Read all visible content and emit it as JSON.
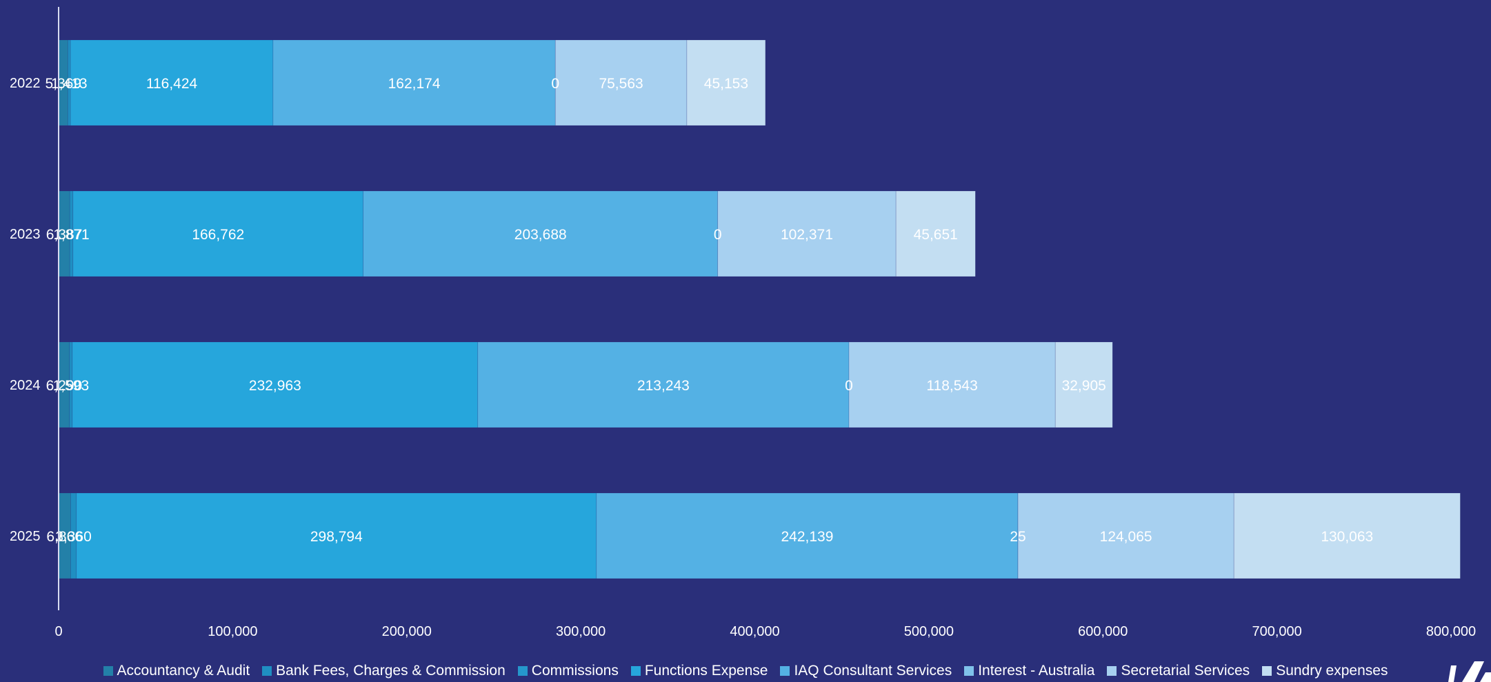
{
  "chart_data": {
    "type": "bar",
    "orientation": "horizontal",
    "stacked": true,
    "categories": [
      "2022",
      "2023",
      "2024",
      "2025"
    ],
    "xlim": [
      0,
      800000
    ],
    "x_ticks": [
      "0",
      "100,000",
      "200,000",
      "300,000",
      "400,000",
      "500,000",
      "600,000",
      "700,000",
      "800,000"
    ],
    "x_tick_values": [
      0,
      100000,
      200000,
      300000,
      400000,
      500000,
      600000,
      700000,
      800000
    ],
    "grid": false,
    "legend_position": "bottom",
    "series": [
      {
        "name": "Accountancy & Audit",
        "color": "#2380a8",
        "values": [
          5369,
          6387,
          6290,
          6866
        ],
        "labels": [
          "5,369",
          "6,387",
          "6,290",
          "6,866"
        ]
      },
      {
        "name": "Bank Fees, Charges & Commission",
        "color": "#1f8fc2",
        "values": [
          1413,
          1871,
          1593,
          3360
        ],
        "labels": [
          "1,413",
          "1,871",
          "1,593",
          "3,360"
        ]
      },
      {
        "name": "Commissions",
        "color": "#2597cc",
        "values": [
          0,
          0,
          0,
          0
        ],
        "labels": [
          "",
          "",
          "",
          ""
        ]
      },
      {
        "name": "Functions Expense",
        "color": "#26a6dc",
        "values": [
          116424,
          166762,
          232963,
          298794
        ],
        "labels": [
          "116,424",
          "166,762",
          "232,963",
          "298,794"
        ]
      },
      {
        "name": "IAQ Consultant Services",
        "color": "#54b1e4",
        "values": [
          162174,
          203688,
          213243,
          242139
        ],
        "labels": [
          "162,174",
          "203,688",
          "213,243",
          "242,139"
        ]
      },
      {
        "name": "Interest - Australia",
        "color": "#7fc2ea",
        "values": [
          0,
          0,
          0,
          25
        ],
        "labels": [
          "0",
          "0",
          "0",
          "25"
        ]
      },
      {
        "name": "Secretarial Services",
        "color": "#a7d0f0",
        "values": [
          75563,
          102371,
          118543,
          124065
        ],
        "labels": [
          "75,563",
          "102,371",
          "118,543",
          "124,065"
        ]
      },
      {
        "name": "Sundry expenses",
        "color": "#c3def2",
        "values": [
          45153,
          45651,
          32905,
          130063
        ],
        "labels": [
          "45,153",
          "45,651",
          "32,905",
          "130,063"
        ]
      }
    ]
  }
}
